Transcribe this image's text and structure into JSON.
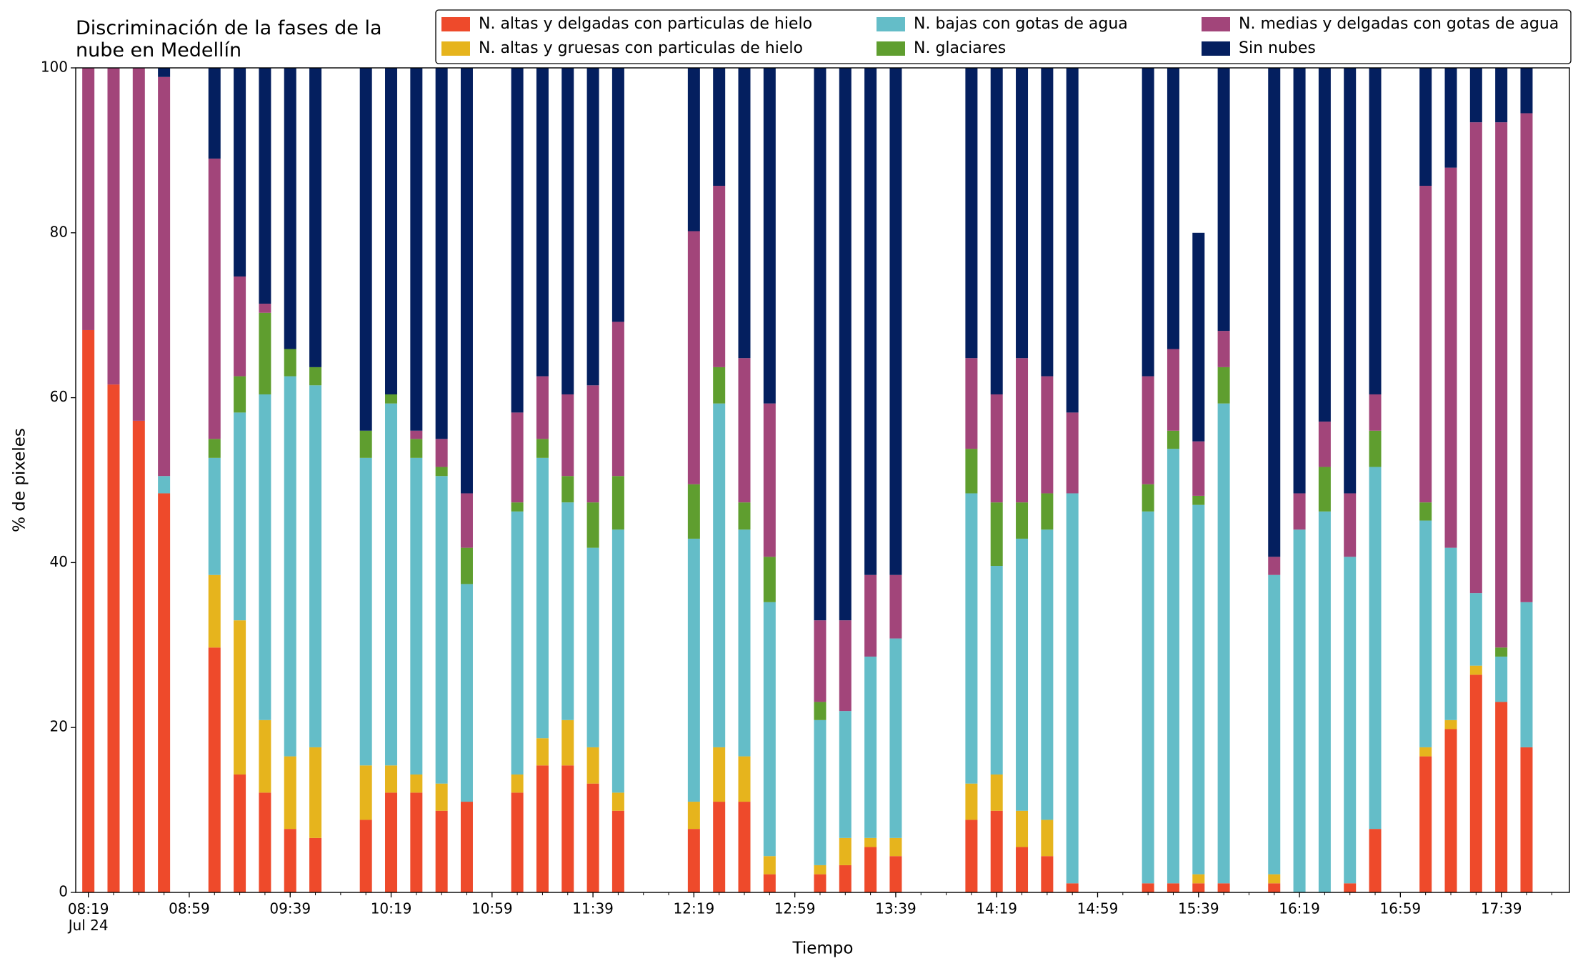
{
  "chart_data": {
    "type": "stacked_bar",
    "title": "Discriminación de la fases de la\nnube en Medellín",
    "x_label": "Tiempo",
    "y_label": "% de pixeles",
    "legend": "upper right",
    "x": [
      "08:19",
      "08:29",
      "08:39",
      "08:49",
      "09:09",
      "09:19",
      "09:29",
      "09:39",
      "09:49",
      "10:09",
      "10:19",
      "10:29",
      "10:39",
      "10:49",
      "11:09",
      "11:19",
      "11:29",
      "11:39",
      "11:49",
      "12:19",
      "12:29",
      "12:39",
      "12:49",
      "13:09",
      "13:19",
      "13:29",
      "13:39",
      "14:09",
      "14:19",
      "14:29",
      "14:39",
      "14:49",
      "15:19",
      "15:29",
      "15:39",
      "15:49",
      "16:09",
      "16:19",
      "16:29",
      "16:39",
      "16:49",
      "17:09",
      "17:19",
      "17:29",
      "17:39",
      "17:49"
    ],
    "xlim": [
      "08:14",
      "18:06"
    ],
    "xticks": [
      {
        "value": "08:19",
        "label": "08:19\nJul 24"
      },
      "08:59",
      "09:39",
      "10:19",
      "10:59",
      "11:39",
      "12:19",
      "12:59",
      "13:39",
      "14:19",
      "14:59",
      "15:39",
      "16:19",
      "16:59",
      "17:39"
    ],
    "ylim": [
      0,
      100
    ],
    "yticks": [
      0,
      20,
      40,
      60,
      80,
      100
    ],
    "series": [
      {
        "name": "N. altas y delgadas con particulas de hielo",
        "color": "#ee4a2b",
        "values": [
          68.2,
          61.6,
          57.2,
          48.4,
          29.7,
          14.3,
          12.1,
          7.7,
          6.6,
          8.8,
          12.1,
          12.1,
          9.9,
          11,
          12.1,
          15.4,
          15.4,
          13.2,
          9.9,
          7.7,
          11,
          11,
          2.2,
          2.2,
          3.3,
          5.5,
          4.4,
          8.8,
          9.9,
          5.5,
          4.4,
          1.1,
          1.1,
          1.1,
          1.1,
          1.1,
          1.1,
          0,
          0,
          1.1,
          7.7,
          16.5,
          19.8,
          26.4,
          23.1,
          17.6
        ]
      },
      {
        "name": "N. altas y gruesas con particulas de hielo",
        "color": "#e6b41d",
        "values": [
          0,
          0,
          0,
          0,
          8.8,
          18.7,
          8.8,
          8.8,
          11,
          6.6,
          3.3,
          2.2,
          3.3,
          0,
          2.2,
          3.3,
          5.5,
          4.4,
          2.2,
          3.3,
          6.6,
          5.5,
          2.2,
          1.1,
          3.3,
          1.1,
          2.2,
          4.4,
          4.4,
          4.4,
          4.4,
          0,
          0,
          0,
          1.1,
          0,
          1.1,
          0,
          0,
          0,
          0,
          1.1,
          1.1,
          1.1,
          0,
          0
        ]
      },
      {
        "name": "N. bajas con gotas de agua",
        "color": "#64bdc8",
        "values": [
          0,
          0,
          0,
          2.1,
          14.2,
          25.2,
          39.5,
          46.1,
          43.9,
          37.3,
          43.9,
          38.4,
          37.3,
          26.4,
          31.9,
          34,
          26.4,
          24.2,
          31.9,
          31.9,
          41.7,
          27.5,
          30.8,
          17.6,
          15.4,
          22,
          24.2,
          35.2,
          25.3,
          33,
          35.2,
          47.3,
          45.1,
          52.7,
          44.8,
          58.2,
          36.3,
          44,
          46.2,
          39.6,
          43.9,
          27.5,
          20.9,
          8.8,
          5.5,
          17.6
        ]
      },
      {
        "name": "N. glaciares",
        "color": "#5f9e2f",
        "values": [
          0,
          0,
          0,
          0,
          2.3,
          4.4,
          9.9,
          3.3,
          2.2,
          3.3,
          1.1,
          2.3,
          1.1,
          4.4,
          1.1,
          2.3,
          3.2,
          5.5,
          6.5,
          6.6,
          4.4,
          3.3,
          5.5,
          2.2,
          0,
          0,
          0,
          5.4,
          7.7,
          4.4,
          4.4,
          0,
          3.3,
          2.2,
          1.1,
          4.4,
          0,
          0,
          5.4,
          0,
          4.4,
          2.2,
          0,
          0,
          1.1,
          0
        ]
      },
      {
        "name": "N. medias y delgadas con gotas de agua",
        "color": "#a2457a",
        "values": [
          31.8,
          38.4,
          42.8,
          48.4,
          34,
          12.1,
          1.1,
          0,
          0,
          0,
          0,
          1,
          3.4,
          6.6,
          10.9,
          7.6,
          9.9,
          14.2,
          18.7,
          30.7,
          22,
          17.5,
          18.6,
          9.9,
          11,
          9.9,
          7.7,
          11,
          13.1,
          17.5,
          14.2,
          9.8,
          13.1,
          9.9,
          6.6,
          4.4,
          2.2,
          4.4,
          5.5,
          7.7,
          4.4,
          38.4,
          46.1,
          57.1,
          63.7,
          59.3
        ]
      },
      {
        "name": "Sin nubes",
        "color": "#041f5f",
        "values": [
          0,
          0,
          0,
          1.1,
          11,
          25.3,
          28.6,
          34.1,
          36.3,
          44,
          39.6,
          44,
          45,
          51.6,
          41.8,
          37.4,
          39.6,
          38.5,
          30.8,
          19.8,
          14.3,
          35.2,
          40.7,
          67,
          67,
          61.5,
          61.5,
          35.2,
          39.6,
          35.2,
          37.4,
          41.8,
          37.4,
          34.1,
          25.3,
          31.9,
          59.3,
          51.6,
          42.9,
          51.6,
          39.6,
          14.3,
          12.1,
          6.6,
          6.6,
          5.5
        ]
      }
    ]
  }
}
